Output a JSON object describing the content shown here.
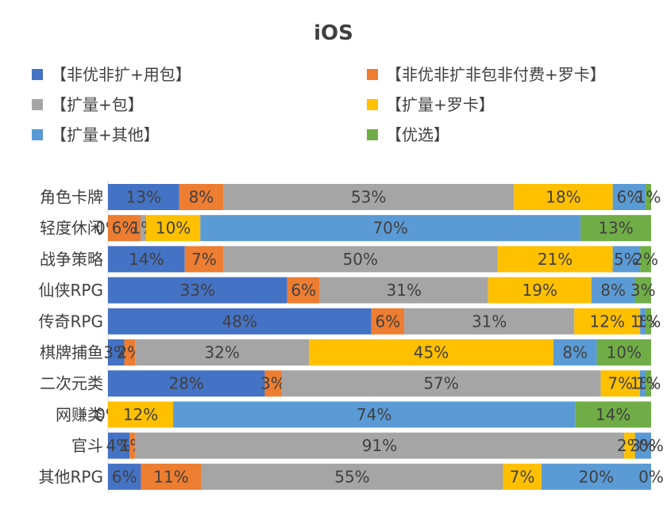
{
  "chart_data": {
    "type": "bar",
    "orientation": "horizontal",
    "stacked": true,
    "percent": true,
    "title": "iOS",
    "xlabel": "",
    "ylabel": "",
    "xlim": [
      0,
      100
    ],
    "grid": false,
    "legend_position": "top",
    "categories": [
      "角色卡牌",
      "轻度休闲",
      "战争策略",
      "仙侠RPG",
      "传奇RPG",
      "棋牌捕鱼",
      "二次元类",
      "网赚类",
      "官斗",
      "其他RPG"
    ],
    "series": [
      {
        "name": "【非优非扩+用包】",
        "color": "#4472c4",
        "values": [
          13,
          0,
          14,
          33,
          48,
          3,
          28,
          0,
          4,
          6
        ],
        "labels": [
          "13%",
          "0%",
          "14%",
          "33%",
          "48%",
          "3%",
          "28%",
          "0%",
          "4%",
          "6%"
        ]
      },
      {
        "name": "【非优非扩非包非付费+罗卡】",
        "color": "#ed7d31",
        "values": [
          8,
          6,
          7,
          6,
          6,
          2,
          3,
          0,
          1,
          11
        ],
        "labels": [
          "8%",
          "6%",
          "7%",
          "6%",
          "6%",
          "2%",
          "3%",
          "",
          "1%",
          "11%"
        ]
      },
      {
        "name": "【扩量+包】",
        "color": "#a5a5a5",
        "values": [
          53,
          1,
          50,
          31,
          31,
          32,
          57,
          0,
          91,
          55
        ],
        "labels": [
          "53%",
          "1%",
          "50%",
          "31%",
          "31%",
          "32%",
          "57%",
          "",
          "91%",
          "55%"
        ]
      },
      {
        "name": "【扩量+罗卡】",
        "color": "#ffc000",
        "values": [
          18,
          10,
          21,
          19,
          12,
          45,
          7,
          12,
          2,
          7
        ],
        "labels": [
          "18%",
          "10%",
          "21%",
          "19%",
          "12%",
          "45%",
          "7%",
          "12%",
          "2%",
          "7%"
        ]
      },
      {
        "name": "【扩量+其他】",
        "color": "#5b9bd5",
        "values": [
          6,
          70,
          5,
          8,
          1,
          8,
          1,
          74,
          3,
          20
        ],
        "labels": [
          "6%",
          "70%",
          "5%",
          "8%",
          "1%",
          "8%",
          "1%",
          "74%",
          "3%",
          "20%"
        ]
      },
      {
        "name": "【优选】",
        "color": "#70ad47",
        "values": [
          1,
          13,
          2,
          3,
          1,
          10,
          1,
          14,
          0,
          0
        ],
        "labels": [
          "1%",
          "13%",
          "2%",
          "3%",
          "1%",
          "10%",
          "1%",
          "14%",
          "0%",
          "0%"
        ]
      }
    ]
  }
}
